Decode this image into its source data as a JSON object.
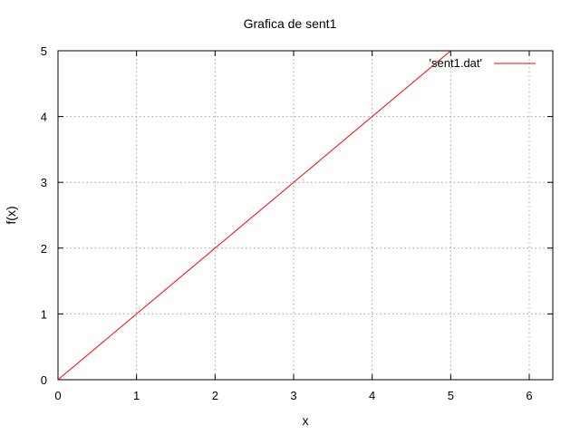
{
  "chart_data": {
    "type": "line",
    "title": "Grafica de sent1",
    "xlabel": "x",
    "ylabel": "f(x)",
    "xlim": [
      0,
      6.3
    ],
    "ylim": [
      0,
      5
    ],
    "x_ticks": [
      0,
      1,
      2,
      3,
      4,
      5,
      6
    ],
    "y_ticks": [
      0,
      1,
      2,
      3,
      4,
      5
    ],
    "grid": true,
    "legend_position": "top-right",
    "series": [
      {
        "name": "'sent1.dat'",
        "color": "#ff0000",
        "x": [
          0,
          1,
          2,
          3,
          4,
          5
        ],
        "y": [
          0,
          1,
          2,
          3,
          4,
          5
        ]
      }
    ]
  }
}
